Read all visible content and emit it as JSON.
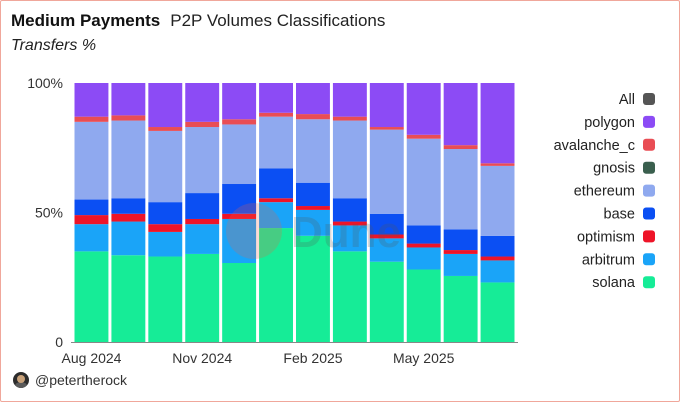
{
  "header": {
    "title": "Medium Payments",
    "subtitle": "P2P Volumes Classifications",
    "caption": "Transfers %"
  },
  "footer": {
    "handle": "@petertherock",
    "avatar_icon": "user-avatar-icon"
  },
  "watermark": {
    "text": "Dune"
  },
  "chart_data": {
    "type": "bar",
    "stacked": true,
    "normalized": true,
    "title": "",
    "xlabel": "",
    "ylabel": "",
    "ylim": [
      0,
      100
    ],
    "y_ticks": [
      "0",
      "50%",
      "100%"
    ],
    "x_ticks": [
      "Aug 2024",
      "Nov 2024",
      "Feb 2025",
      "May 2025"
    ],
    "categories": [
      "2024-08",
      "2024-09",
      "2024-10",
      "2024-11",
      "2024-12",
      "2025-01",
      "2025-02",
      "2025-03",
      "2025-04",
      "2025-05",
      "2025-06",
      "2025-07"
    ],
    "legend_position": "right",
    "legend": [
      "All",
      "polygon",
      "avalanche_c",
      "gnosis",
      "ethereum",
      "base",
      "optimism",
      "arbitrum",
      "solana"
    ],
    "legend_colors": [
      "#555555",
      "#8c4bf5",
      "#e94d54",
      "#3a5f4e",
      "#8fa9ef",
      "#0b4ff3",
      "#ee1428",
      "#1aa4f8",
      "#16ec97"
    ],
    "series": [
      {
        "name": "solana",
        "color": "#16ec97",
        "values": [
          35,
          33.5,
          33,
          34,
          30.5,
          44,
          41,
          35,
          31,
          28,
          25.5,
          23
        ]
      },
      {
        "name": "arbitrum",
        "color": "#1aa4f8",
        "values": [
          10.5,
          13,
          9.5,
          11.5,
          17,
          10,
          10,
          10,
          9,
          8.5,
          8.5,
          8.5
        ]
      },
      {
        "name": "optimism",
        "color": "#ee1428",
        "values": [
          3.5,
          3,
          3,
          2,
          2,
          1.5,
          1.5,
          1.5,
          1.5,
          1.5,
          1.5,
          1.5
        ]
      },
      {
        "name": "base",
        "color": "#0b4ff3",
        "values": [
          6,
          6,
          8.5,
          10,
          11.5,
          11.5,
          9,
          9,
          8,
          7,
          8,
          8
        ]
      },
      {
        "name": "ethereum",
        "color": "#8fa9ef",
        "values": [
          30,
          30,
          27.5,
          25.5,
          23,
          20,
          24.5,
          30,
          32.5,
          33.5,
          31,
          27
        ]
      },
      {
        "name": "gnosis",
        "color": "#3a5f4e",
        "values": [
          0,
          0,
          0,
          0,
          0,
          0,
          0,
          0,
          0,
          0,
          0,
          0
        ]
      },
      {
        "name": "avalanche_c",
        "color": "#e94d54",
        "values": [
          2,
          2,
          1.5,
          2,
          2,
          1.5,
          2,
          1.5,
          1,
          1.5,
          1.5,
          1
        ]
      },
      {
        "name": "polygon",
        "color": "#8c4bf5",
        "values": [
          13,
          12.5,
          17,
          15,
          14,
          11.5,
          12,
          13,
          17,
          20,
          24,
          31
        ]
      }
    ]
  }
}
